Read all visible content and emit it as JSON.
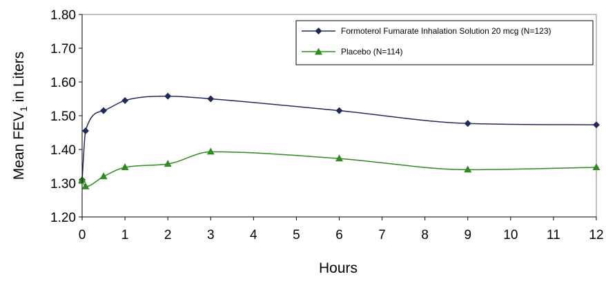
{
  "chart_data": {
    "type": "line",
    "title": "",
    "xlabel": "Hours",
    "ylabel_prefix": "Mean FEV",
    "ylabel_subscript": "1",
    "ylabel_suffix": " in Liters",
    "xlim": [
      0,
      12
    ],
    "ylim": [
      1.2,
      1.8
    ],
    "xticks": [
      "0",
      "1",
      "2",
      "3",
      "4",
      "5",
      "6",
      "7",
      "8",
      "9",
      "10",
      "11",
      "12"
    ],
    "yticks": [
      "1.20",
      "1.30",
      "1.40",
      "1.50",
      "1.60",
      "1.70",
      "1.80"
    ],
    "grid": false,
    "legend_position": "top-right",
    "series": [
      {
        "name": "Formoterol Fumarate Inhalation Solution 20 mcg (N=123)",
        "color": "#1f2a5c",
        "marker": "diamond",
        "x": [
          0,
          0.08,
          0.5,
          1,
          2,
          3,
          6,
          9,
          12
        ],
        "y": [
          1.31,
          1.455,
          1.515,
          1.545,
          1.558,
          1.55,
          1.515,
          1.477,
          1.473
        ]
      },
      {
        "name": "Placebo (N=114)",
        "color": "#2e8b1e",
        "marker": "triangle",
        "x": [
          0,
          0.08,
          0.5,
          1,
          2,
          3,
          6,
          9,
          12
        ],
        "y": [
          1.31,
          1.29,
          1.32,
          1.347,
          1.357,
          1.393,
          1.373,
          1.34,
          1.347
        ]
      }
    ]
  }
}
